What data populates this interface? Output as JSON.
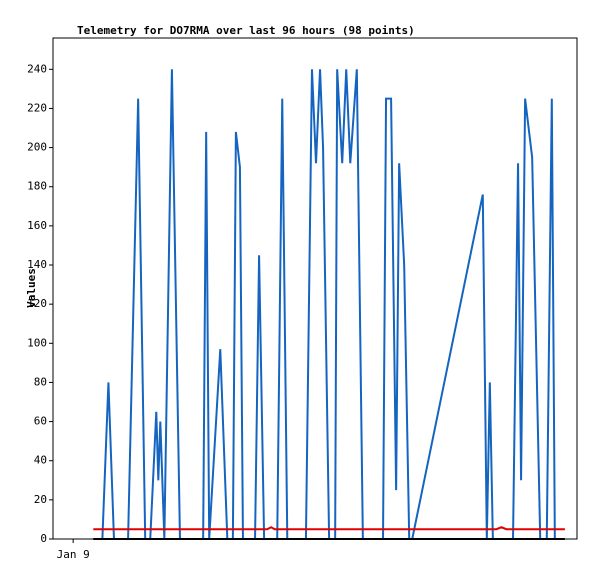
{
  "chart_data": {
    "type": "line",
    "title": "Telemetry for DO7RMA over last 96 hours (98 points)",
    "y_label": "Values",
    "xlim": [
      -4,
      100
    ],
    "xticks": [
      {
        "value": 0,
        "label": "Jan 9"
      }
    ],
    "ylim": [
      0,
      256
    ],
    "yticks": [
      0,
      20,
      40,
      60,
      80,
      100,
      120,
      140,
      160,
      180,
      200,
      220,
      240
    ],
    "grid": false,
    "series": [
      {
        "color": "#1565c0",
        "x": [
          4.0,
          5.8,
          7.0,
          8.1,
          10.9,
          12.9,
          14.3,
          15.3,
          16.5,
          16.9,
          17.3,
          18.1,
          19.6,
          21.2,
          25.8,
          26.4,
          27.0,
          29.2,
          30.6,
          31.7,
          32.3,
          33.1,
          33.7,
          36.1,
          36.9,
          37.9,
          40.5,
          41.5,
          42.5,
          46.2,
          47.4,
          48.2,
          49.0,
          49.6,
          50.8,
          52.0,
          52.4,
          53.4,
          54.2,
          55.0,
          56.3,
          57.5,
          61.5,
          62.1,
          63.1,
          64.1,
          64.7,
          65.7,
          66.7,
          67.3,
          81.3,
          82.1,
          82.7,
          83.3,
          87.3,
          88.3,
          88.9,
          89.7,
          91.1,
          92.7,
          94.0,
          95.0,
          95.6
        ],
        "values": [
          0,
          0,
          80,
          0,
          0,
          225,
          0,
          0,
          65,
          30,
          60,
          0,
          240,
          0,
          0,
          208,
          0,
          97,
          0,
          0,
          208,
          190,
          0,
          0,
          145,
          0,
          0,
          225,
          0,
          0,
          240,
          192,
          240,
          200,
          0,
          0,
          240,
          192,
          240,
          192,
          240,
          0,
          0,
          225,
          225,
          25,
          192,
          140,
          0,
          0,
          176,
          0,
          80,
          0,
          0,
          192,
          30,
          225,
          195,
          0,
          0,
          225,
          0
        ]
      },
      {
        "color": "#e00000",
        "x": [
          4,
          38.5,
          39.3,
          40,
          84,
          85,
          86,
          97.6
        ],
        "values": [
          5,
          5,
          6,
          5,
          5,
          6,
          5,
          5
        ]
      },
      {
        "color": "#000000",
        "x": [
          4,
          97.6
        ],
        "values": [
          0,
          0
        ]
      }
    ]
  }
}
